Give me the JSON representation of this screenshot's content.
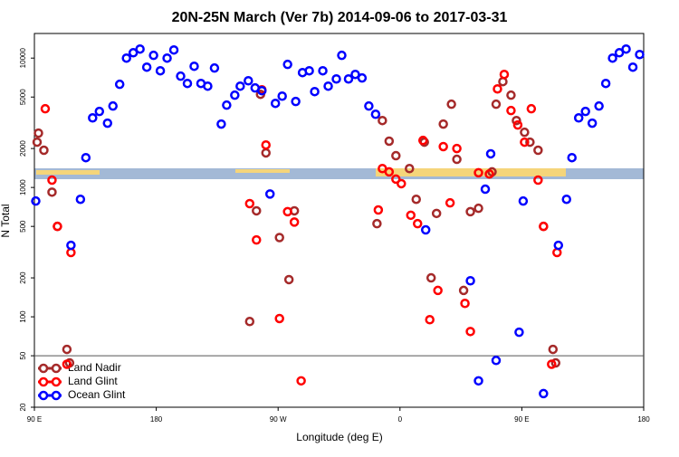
{
  "chart_data": {
    "type": "scatter",
    "title": "20N-25N March (Ver 7b)   2014-09-06 to 2017-03-31",
    "xlabel": "Longitude (deg E)",
    "ylabel": "N Total",
    "log_y": true,
    "legend": "lower left",
    "xlim": [
      90,
      540
    ],
    "ylim": [
      20,
      15500
    ],
    "xticks": [
      {
        "value": 90,
        "label": "90 E"
      },
      180,
      {
        "value": 270,
        "label": "90 W"
      },
      {
        "value": 360,
        "label": "0"
      },
      {
        "value": 450,
        "label": "90 E"
      },
      {
        "value": 540,
        "label": "180"
      }
    ],
    "yticks": [
      20,
      50,
      100,
      200,
      500,
      1000,
      2000,
      5000,
      10000
    ],
    "hline": 50,
    "series": [
      {
        "name": "Land Nadir",
        "color": "#a52a2a",
        "x": [
          93,
          92,
          97,
          103,
          107,
          114,
          116,
          249,
          254,
          257,
          261,
          271,
          278,
          282,
          343,
          347,
          352,
          357,
          367,
          372,
          378,
          383,
          387,
          392,
          398,
          402,
          407,
          412,
          418,
          428,
          431,
          436,
          442,
          446,
          452,
          456,
          462,
          466,
          473,
          475
        ],
        "values": [
          2630,
          2240,
          1940,
          920,
          500,
          56,
          44,
          92,
          660,
          5250,
          1850,
          410,
          194,
          660,
          525,
          3290,
          2280,
          1760,
          1400,
          810,
          2240,
          200,
          630,
          3090,
          4400,
          1650,
          160,
          650,
          690,
          1320,
          4400,
          6580,
          5170,
          3290,
          2670,
          2240,
          1940,
          500,
          56,
          44
        ]
      },
      {
        "name": "Land Glint",
        "color": "#ff0000",
        "x": [
          98,
          103,
          107,
          117,
          114,
          249,
          254,
          258,
          261,
          277,
          282,
          271,
          287,
          344,
          347,
          352,
          357,
          361,
          368,
          373,
          377,
          382,
          388,
          392,
          397,
          402,
          408,
          412,
          418,
          426,
          432,
          437,
          442,
          447,
          452,
          457,
          462,
          466,
          472,
          476
        ],
        "values": [
          4060,
          1140,
          500,
          314,
          43,
          750,
          393,
          5690,
          2130,
          650,
          540,
          97,
          32,
          670,
          1400,
          1320,
          1160,
          1070,
          610,
          525,
          2310,
          95,
          160,
          2070,
          760,
          2000,
          127,
          77,
          1300,
          1270,
          5780,
          7480,
          3930,
          3040,
          2240,
          4060,
          1140,
          500,
          43,
          314
        ]
      },
      {
        "name": "Ocean Glint",
        "color": "#0000ff",
        "x": [
          91,
          117,
          124,
          128,
          133,
          138,
          144,
          148,
          153,
          158,
          163,
          168,
          173,
          178,
          183,
          188,
          193,
          198,
          203,
          208,
          213,
          218,
          223,
          228,
          232,
          238,
          242,
          248,
          253,
          258,
          264,
          268,
          273,
          277,
          283,
          288,
          293,
          297,
          303,
          307,
          313,
          317,
          322,
          327,
          332,
          337,
          342,
          379,
          412,
          418,
          423,
          427,
          431,
          448,
          451,
          466,
          477,
          483,
          487,
          492,
          497,
          502,
          507,
          512,
          517,
          522,
          527,
          532,
          537
        ],
        "values": [
          785,
          357,
          810,
          1700,
          3450,
          3870,
          3140,
          4260,
          6270,
          10000,
          11000,
          11750,
          8510,
          10500,
          7980,
          10000,
          11560,
          7250,
          6370,
          8650,
          6370,
          6070,
          8380,
          3090,
          4330,
          5170,
          6070,
          6680,
          5880,
          5600,
          890,
          4470,
          5080,
          8940,
          4620,
          7730,
          7980,
          5510,
          7980,
          6070,
          6900,
          10500,
          6900,
          7480,
          7020,
          4260,
          3680,
          470,
          190,
          32,
          970,
          1820,
          46,
          76,
          785,
          25.5,
          357,
          810,
          1700,
          3450,
          3870,
          3140,
          4260,
          6370,
          10000,
          11000,
          11750,
          8510,
          10660
        ]
      }
    ]
  }
}
